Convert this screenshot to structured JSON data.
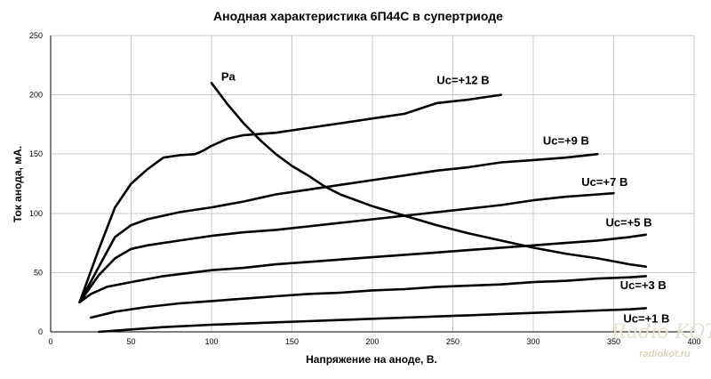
{
  "chart_data": {
    "type": "line",
    "title": "Анодная характеристика 6П44С в супертриоде",
    "xlabel": "Напряжение на аноде, В.",
    "ylabel": "Ток анода, мА.",
    "xlim": [
      0,
      400
    ],
    "ylim": [
      0,
      250
    ],
    "x_ticks": [
      "0",
      "50",
      "100",
      "150",
      "200",
      "250",
      "300",
      "350",
      "400"
    ],
    "y_ticks": [
      "0",
      "50",
      "100",
      "150",
      "200",
      "250"
    ],
    "grid": true,
    "series": [
      {
        "name": "Uc=+12 В",
        "points": [
          [
            18,
            25
          ],
          [
            22,
            40
          ],
          [
            30,
            70
          ],
          [
            40,
            105
          ],
          [
            50,
            125
          ],
          [
            60,
            137
          ],
          [
            70,
            147
          ],
          [
            80,
            149
          ],
          [
            90,
            150
          ],
          [
            95,
            153
          ],
          [
            100,
            157
          ],
          [
            110,
            163
          ],
          [
            120,
            166
          ],
          [
            140,
            168
          ],
          [
            160,
            172
          ],
          [
            180,
            176
          ],
          [
            200,
            180
          ],
          [
            220,
            184
          ],
          [
            240,
            193
          ],
          [
            260,
            196
          ],
          [
            280,
            200
          ]
        ]
      },
      {
        "name": "Uc=+9 В",
        "points": [
          [
            18,
            25
          ],
          [
            30,
            55
          ],
          [
            40,
            80
          ],
          [
            50,
            90
          ],
          [
            60,
            95
          ],
          [
            80,
            101
          ],
          [
            100,
            105
          ],
          [
            120,
            110
          ],
          [
            140,
            116
          ],
          [
            160,
            120
          ],
          [
            180,
            124
          ],
          [
            200,
            128
          ],
          [
            220,
            132
          ],
          [
            240,
            136
          ],
          [
            260,
            139
          ],
          [
            280,
            143
          ],
          [
            300,
            145
          ],
          [
            320,
            147
          ],
          [
            340,
            150
          ]
        ]
      },
      {
        "name": "Uc=+7 В",
        "points": [
          [
            18,
            25
          ],
          [
            30,
            48
          ],
          [
            40,
            62
          ],
          [
            50,
            70
          ],
          [
            60,
            73
          ],
          [
            80,
            77
          ],
          [
            100,
            81
          ],
          [
            120,
            84
          ],
          [
            140,
            86
          ],
          [
            160,
            89
          ],
          [
            180,
            92
          ],
          [
            200,
            95
          ],
          [
            220,
            98
          ],
          [
            240,
            101
          ],
          [
            260,
            104
          ],
          [
            280,
            107
          ],
          [
            300,
            111
          ],
          [
            320,
            114
          ],
          [
            340,
            116
          ],
          [
            350,
            117
          ]
        ]
      },
      {
        "name": "Uc=+5 В",
        "points": [
          [
            18,
            25
          ],
          [
            25,
            32
          ],
          [
            35,
            38
          ],
          [
            50,
            42
          ],
          [
            70,
            47
          ],
          [
            100,
            52
          ],
          [
            120,
            54
          ],
          [
            140,
            57
          ],
          [
            160,
            59
          ],
          [
            180,
            61
          ],
          [
            200,
            63
          ],
          [
            220,
            65
          ],
          [
            240,
            67
          ],
          [
            260,
            69
          ],
          [
            280,
            71
          ],
          [
            300,
            73
          ],
          [
            320,
            75
          ],
          [
            340,
            77
          ],
          [
            360,
            80
          ],
          [
            370,
            82
          ]
        ]
      },
      {
        "name": "Uc=+3 В",
        "points": [
          [
            25,
            12
          ],
          [
            40,
            17
          ],
          [
            60,
            21
          ],
          [
            80,
            24
          ],
          [
            100,
            26
          ],
          [
            120,
            28
          ],
          [
            140,
            30
          ],
          [
            160,
            32
          ],
          [
            180,
            33
          ],
          [
            200,
            35
          ],
          [
            220,
            36
          ],
          [
            240,
            38
          ],
          [
            260,
            39
          ],
          [
            280,
            40
          ],
          [
            300,
            42
          ],
          [
            320,
            43
          ],
          [
            340,
            45
          ],
          [
            360,
            46
          ],
          [
            370,
            47
          ]
        ]
      },
      {
        "name": "Uc=+1 В",
        "points": [
          [
            30,
            0
          ],
          [
            50,
            2
          ],
          [
            70,
            4
          ],
          [
            100,
            6
          ],
          [
            120,
            7
          ],
          [
            140,
            8
          ],
          [
            160,
            9
          ],
          [
            180,
            10
          ],
          [
            200,
            11
          ],
          [
            220,
            12
          ],
          [
            240,
            13
          ],
          [
            260,
            14
          ],
          [
            280,
            15
          ],
          [
            300,
            16
          ],
          [
            320,
            17
          ],
          [
            340,
            18
          ],
          [
            360,
            19
          ],
          [
            370,
            20
          ]
        ]
      },
      {
        "name": "Pa",
        "points": [
          [
            100,
            210
          ],
          [
            110,
            192
          ],
          [
            120,
            176
          ],
          [
            130,
            162
          ],
          [
            140,
            150
          ],
          [
            150,
            140
          ],
          [
            160,
            132
          ],
          [
            170,
            123
          ],
          [
            180,
            116
          ],
          [
            200,
            106
          ],
          [
            220,
            98
          ],
          [
            240,
            90
          ],
          [
            260,
            83
          ],
          [
            280,
            77
          ],
          [
            300,
            71
          ],
          [
            320,
            66
          ],
          [
            340,
            62
          ],
          [
            360,
            57
          ],
          [
            370,
            55
          ]
        ]
      }
    ],
    "label_anchors": [
      [
        240,
        209
      ],
      [
        306,
        158
      ],
      [
        330,
        123
      ],
      [
        345,
        89
      ],
      [
        354,
        36
      ],
      [
        356,
        8
      ],
      [
        106,
        212
      ]
    ]
  },
  "watermark": {
    "main": "Radio KOT",
    "sub": "radiokot.ru"
  }
}
